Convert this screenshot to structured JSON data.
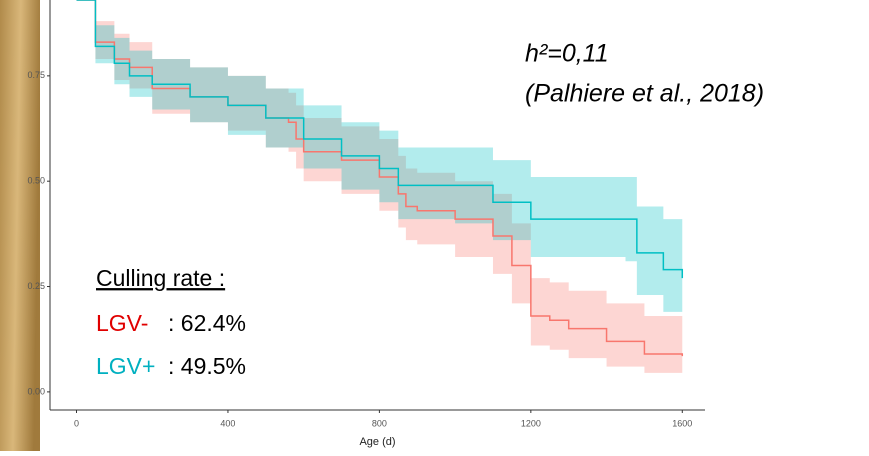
{
  "chart_data": {
    "type": "step",
    "xlabel": "Age (d)",
    "xlim": [
      -70,
      1660
    ],
    "ylim": [
      -0.043,
      0.93
    ],
    "xticks": [
      0,
      400,
      800,
      1200,
      1600
    ],
    "yticks": [
      {
        "value": 0,
        "label": "0.00"
      },
      {
        "value": 0.25,
        "label": "0.25"
      },
      {
        "value": 0.5,
        "label": "0.50"
      },
      {
        "value": 0.75,
        "label": "0.75"
      }
    ],
    "series": [
      {
        "name": "LGV-",
        "color": "#F8766D",
        "x": [
          0,
          50,
          100,
          140,
          200,
          300,
          400,
          500,
          560,
          580,
          600,
          700,
          800,
          850,
          870,
          900,
          1000,
          1100,
          1150,
          1200,
          1250,
          1300,
          1400,
          1500,
          1600
        ],
        "values": [
          0.93,
          0.83,
          0.79,
          0.77,
          0.72,
          0.7,
          0.68,
          0.65,
          0.64,
          0.6,
          0.57,
          0.55,
          0.51,
          0.47,
          0.44,
          0.43,
          0.41,
          0.37,
          0.3,
          0.18,
          0.17,
          0.15,
          0.12,
          0.09,
          0.085
        ],
        "lower": [
          0.93,
          0.79,
          0.74,
          0.72,
          0.66,
          0.64,
          0.62,
          0.58,
          0.57,
          0.53,
          0.5,
          0.47,
          0.43,
          0.39,
          0.36,
          0.35,
          0.32,
          0.28,
          0.21,
          0.11,
          0.1,
          0.08,
          0.06,
          0.045,
          0.04
        ],
        "upper": [
          0.93,
          0.88,
          0.85,
          0.83,
          0.79,
          0.77,
          0.75,
          0.72,
          0.71,
          0.68,
          0.65,
          0.63,
          0.6,
          0.56,
          0.53,
          0.52,
          0.5,
          0.47,
          0.4,
          0.27,
          0.26,
          0.24,
          0.21,
          0.18,
          0.18
        ]
      },
      {
        "name": "LGV+",
        "color": "#00BFC4",
        "x": [
          0,
          50,
          100,
          140,
          200,
          300,
          400,
          500,
          600,
          700,
          800,
          850,
          1000,
          1100,
          1200,
          1450,
          1480,
          1550,
          1600
        ],
        "values": [
          0.93,
          0.82,
          0.78,
          0.75,
          0.73,
          0.7,
          0.68,
          0.65,
          0.6,
          0.56,
          0.53,
          0.49,
          0.49,
          0.45,
          0.41,
          0.41,
          0.33,
          0.29,
          0.27
        ],
        "lower": [
          0.93,
          0.78,
          0.73,
          0.7,
          0.67,
          0.64,
          0.61,
          0.58,
          0.53,
          0.48,
          0.45,
          0.41,
          0.4,
          0.36,
          0.32,
          0.31,
          0.23,
          0.19,
          0.18
        ],
        "upper": [
          0.93,
          0.87,
          0.84,
          0.81,
          0.79,
          0.77,
          0.75,
          0.72,
          0.68,
          0.64,
          0.62,
          0.58,
          0.58,
          0.55,
          0.51,
          0.51,
          0.44,
          0.41,
          0.4
        ]
      }
    ],
    "annotations": {
      "heritability": "h²=0,11",
      "reference": "(Palhiere et al., 2018)",
      "culling_title": "Culling rate :",
      "lgv_minus_label": "LGV-",
      "lgv_minus_rate": ": 62.4%",
      "lgv_plus_label": "LGV+",
      "lgv_plus_rate": ": 49.5%"
    }
  }
}
